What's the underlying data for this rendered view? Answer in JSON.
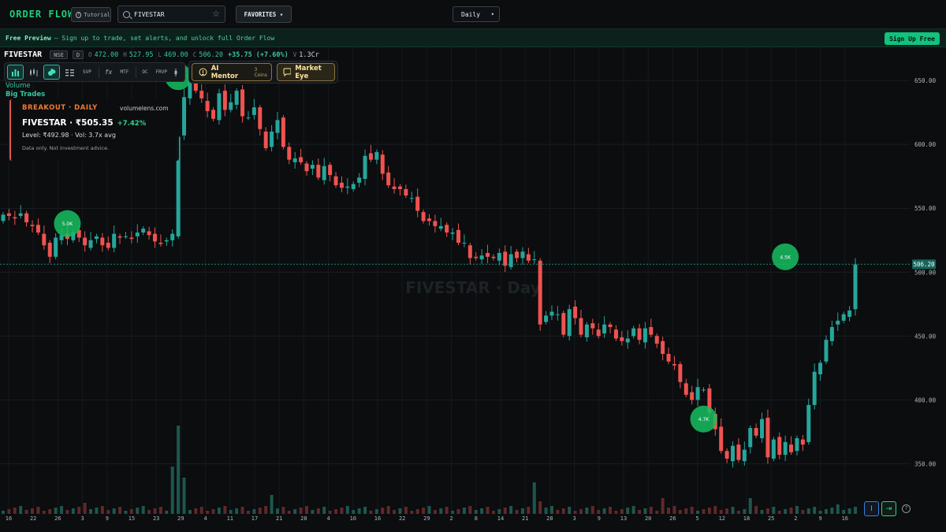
{
  "topbar": {
    "brand": "ORDER FLOW",
    "tutorial_label": "Tutorial",
    "search_value": "FIVESTAR",
    "favorites_label": "FAVORITES ▾",
    "timeframe": "Daily"
  },
  "banner": {
    "title": "Free Preview",
    "text": "— Sign up to trade, set alerts, and unlock full Order Flow",
    "signup_label": "Sign Up Free"
  },
  "ohlc": {
    "symbol": "FIVESTAR",
    "exchange": "NSE",
    "interval": "D",
    "o_label": "O",
    "open": "472.00",
    "h_label": "H",
    "high": "527.95",
    "l_label": "L",
    "low": "469.00",
    "c_label": "C",
    "close": "506.20",
    "change": "+35.75 (+7.60%)",
    "v_label": "V",
    "volume": "1.3Cr"
  },
  "toolbar": {
    "svp": "SVP",
    "fx": "fx",
    "mtf": "MTF",
    "oc": "OC",
    "frvp": "FRVP",
    "ai_mentor": "AI Mentor",
    "ai_coins": "3 Coins",
    "market_eye": "Market Eye"
  },
  "indicators": {
    "volume": "Volume",
    "big_trades": "Big Trades"
  },
  "alert": {
    "title": "BREAKOUT · DAILY",
    "brand": "volumelens.com",
    "headline": "FIVESTAR · ₹505.35",
    "pct": "+7.42%",
    "level": "Level: ₹492.98 · Vol: 3.7x avg",
    "note": "Data only. Not investment advice."
  },
  "chart_data": {
    "type": "candlestick",
    "y_ticks": [
      "650.00",
      "600.00",
      "550.00",
      "500.00",
      "450.00",
      "400.00",
      "350.00"
    ],
    "y_tick_values": [
      650,
      600,
      550,
      500,
      450,
      400,
      350
    ],
    "ylim": [
      312,
      676
    ],
    "x_ticks": [
      "16",
      "22",
      "26",
      "3",
      "9",
      "15",
      "23",
      "29",
      "4",
      "11",
      "17",
      "21",
      "28",
      "4",
      "10",
      "16",
      "22",
      "29",
      "2",
      "8",
      "14",
      "21",
      "28",
      "3",
      "9",
      "13",
      "20",
      "26",
      "5",
      "12",
      "18",
      "25",
      "2",
      "9",
      "16"
    ],
    "last_price_label": "506.20",
    "last_price": 506.2,
    "watermark": "FIVESTAR · Day",
    "big_trades": [
      {
        "label": "5.0K",
        "x": 11,
        "y": 538
      },
      {
        "label": "4.5K",
        "x": 30,
        "y": 653
      },
      {
        "label": "4.7K",
        "x": 120,
        "y": 385
      },
      {
        "label": "4.5K",
        "x": 134,
        "y": 512
      }
    ],
    "colors": {
      "up": "#26a69a",
      "down": "#ef5350",
      "bubble": "#16c060",
      "grid": "#1a1f24"
    }
  },
  "corner_buttons": {
    "measure": "I",
    "goto_end": "⇥",
    "help": "?"
  }
}
